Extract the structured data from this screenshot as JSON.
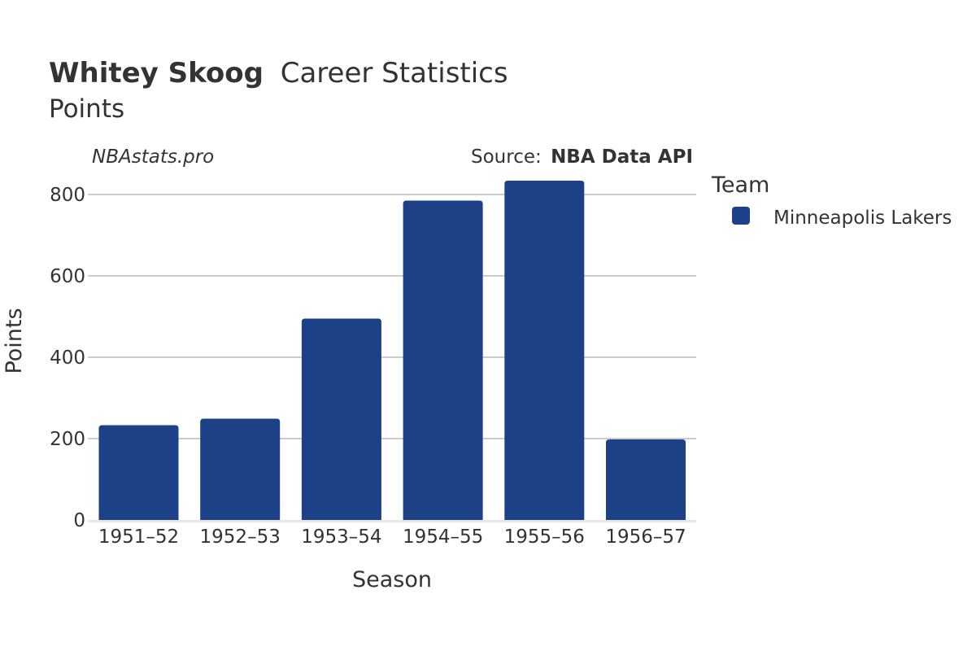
{
  "colors": {
    "bar": "#1c4187",
    "text": "#333333",
    "grid": "#999999",
    "axis": "#e8e8e8"
  },
  "header": {
    "title_name": "Whitey Skoog",
    "title_rest": "Career Statistics",
    "subtitle": "Points"
  },
  "watermark": "NBAstats.pro",
  "source": {
    "prefix": "Source:",
    "name": "NBA Data API"
  },
  "legend": {
    "title": "Team",
    "placement": "right",
    "entries": [
      "Minneapolis Lakers"
    ]
  },
  "chart_data": {
    "type": "bar",
    "title": "Whitey Skoog Career Statistics",
    "subtitle": "Points",
    "xlabel": "Season",
    "ylabel": "Points",
    "categories": [
      "1951–52",
      "1952–53",
      "1953–54",
      "1954–55",
      "1955–56",
      "1956–57"
    ],
    "series": [
      {
        "name": "Minneapolis Lakers",
        "values": [
          233,
          249,
          495,
          785,
          834,
          198
        ]
      }
    ],
    "ylim": [
      0,
      860
    ],
    "yticks": [
      0,
      200,
      400,
      600,
      800
    ],
    "grid": true
  }
}
